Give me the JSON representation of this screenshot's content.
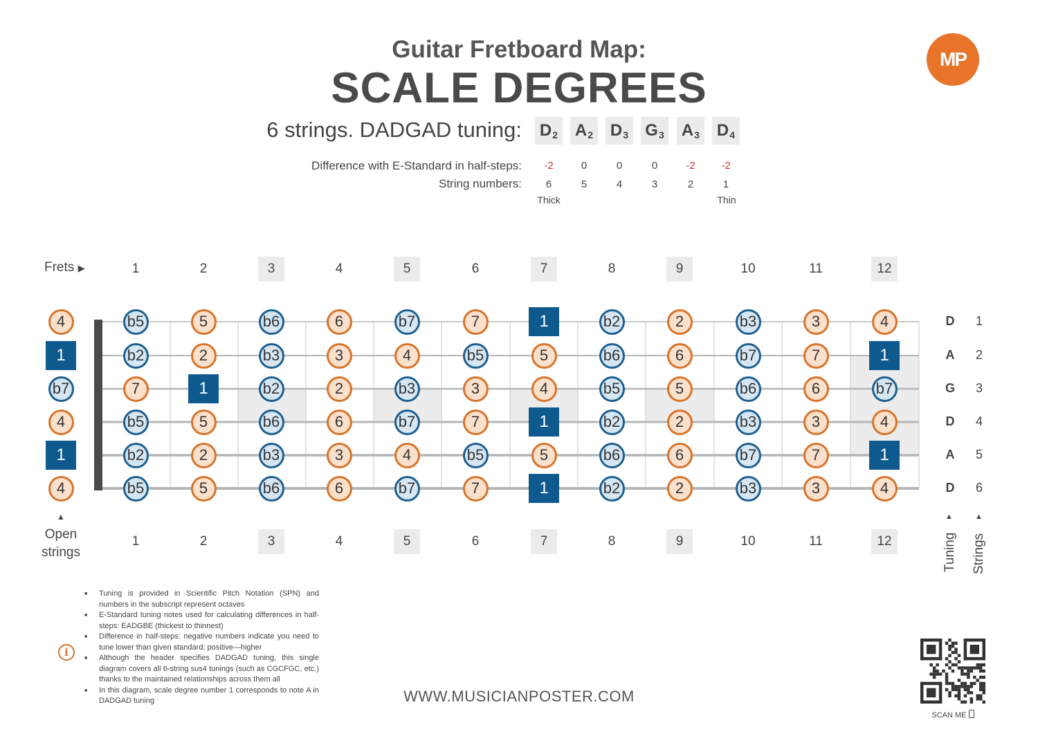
{
  "title": "Guitar Fretboard Map:",
  "subtitle": "SCALE DEGREES",
  "tuning_label": "6 strings. DADGAD tuning:",
  "tuning_notes": [
    {
      "note": "D",
      "octave": "2"
    },
    {
      "note": "A",
      "octave": "2"
    },
    {
      "note": "D",
      "octave": "3"
    },
    {
      "note": "G",
      "octave": "3"
    },
    {
      "note": "A",
      "octave": "3"
    },
    {
      "note": "D",
      "octave": "4"
    }
  ],
  "difference_label": "Difference with E-Standard in half-steps:",
  "differences": [
    "-2",
    "0",
    "0",
    "0",
    "-2",
    "-2"
  ],
  "string_numbers_label": "String numbers:",
  "string_numbers": [
    "6",
    "5",
    "4",
    "3",
    "2",
    "1"
  ],
  "thick_label": "Thick",
  "thin_label": "Thin",
  "frets_label": "Frets",
  "fret_numbers": [
    "1",
    "2",
    "3",
    "4",
    "5",
    "6",
    "7",
    "8",
    "9",
    "10",
    "11",
    "12"
  ],
  "highlighted_frets": [
    "3",
    "5",
    "7",
    "9",
    "12"
  ],
  "open_strings_label": "Open strings",
  "open_strings": [
    "4",
    "1",
    "b7",
    "4",
    "1",
    "4"
  ],
  "fretboard": [
    [
      "b5",
      "5",
      "b6",
      "6",
      "b7",
      "7",
      "1",
      "b2",
      "2",
      "b3",
      "3",
      "4"
    ],
    [
      "b2",
      "2",
      "b3",
      "3",
      "4",
      "b5",
      "5",
      "b6",
      "6",
      "b7",
      "7",
      "1"
    ],
    [
      "7",
      "1",
      "b2",
      "2",
      "b3",
      "3",
      "4",
      "b5",
      "5",
      "b6",
      "6",
      "b7"
    ],
    [
      "b5",
      "5",
      "b6",
      "6",
      "b7",
      "7",
      "1",
      "b2",
      "2",
      "b3",
      "3",
      "4"
    ],
    [
      "b2",
      "2",
      "b3",
      "3",
      "4",
      "b5",
      "5",
      "b6",
      "6",
      "b7",
      "7",
      "1"
    ],
    [
      "b5",
      "5",
      "b6",
      "6",
      "b7",
      "7",
      "1",
      "b2",
      "2",
      "b3",
      "3",
      "4"
    ]
  ],
  "right_tuning": [
    "D",
    "A",
    "G",
    "D",
    "A",
    "D"
  ],
  "right_strings": [
    "1",
    "2",
    "3",
    "4",
    "5",
    "6"
  ],
  "tuning_axis_label": "Tuning",
  "strings_axis_label": "Strings",
  "colors": {
    "orange": "#d7742b",
    "blue": "#1d5f8f",
    "root": "#0e5a8f"
  },
  "notes": [
    "Tuning is provided in Scientific Pitch Notation (SPN) and numbers in the subscript represent octaves",
    "E-Standard tuning notes used for calculating differences in half-steps: EADGBE (thickest to thinnest)",
    "Difference in half-steps: negative numbers indicate you need to tune lower than given standard; positive—higher",
    "Although the header specifies DADGAD tuning, this single diagram covers all 6-string sus4 tunings (such as CGCFGC, etc.) thanks to the maintained relationships across them all",
    "In this diagram, scale degree number 1 corresponds to note A in DADGAD tuning"
  ],
  "website": "WWW.MUSICIANPOSTER.COM",
  "scan_me": "SCAN ME",
  "logo_text": "MP"
}
